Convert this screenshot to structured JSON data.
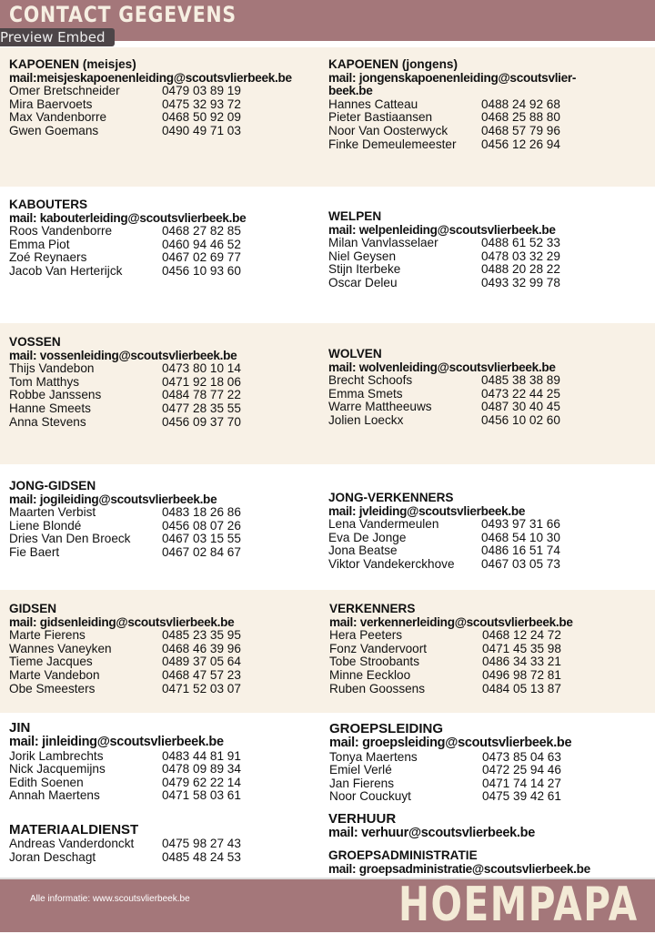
{
  "header": {
    "title": "CONTACT GEGEVENS",
    "embed_label": "Preview Embed"
  },
  "sections": [
    {
      "title": "KAPOENEN (meisjes)",
      "mail": "mail:meisjeskapoenenleiding@scoutsvlierbeek.be",
      "people": [
        [
          "Omer Bretschneider",
          "0479 03 89 19"
        ],
        [
          "Mira Baervoets",
          "0475 32 93 72"
        ],
        [
          "Max Vandenborre",
          "0468 50 92 09"
        ],
        [
          "Gwen Goemans",
          "0490 49 71 03"
        ]
      ]
    },
    {
      "title": "KAPOENEN (jongens)",
      "mail": "mail: jongenskapoenenleiding@scoutsvlier-beek.be",
      "people": [
        [
          "Hannes Catteau",
          "0488 24 92 68"
        ],
        [
          "Pieter Bastiaansen",
          "0468 25 88 80"
        ],
        [
          "Noor Van Oosterwyck",
          "0468 57 79 96"
        ],
        [
          "Finke Demeulemeester",
          "0456 12 26 94"
        ]
      ]
    },
    {
      "title": "KABOUTERS",
      "mail": "mail: kabouterleiding@scoutsvlierbeek.be",
      "people": [
        [
          "Roos Vandenborre",
          "0468 27 82 85"
        ],
        [
          "Emma Piot",
          "0460 94 46 52"
        ],
        [
          "Zoé Reynaers",
          "0467 02 69 77"
        ],
        [
          "Jacob Van Herterijck",
          "0456 10 93 60"
        ]
      ]
    },
    {
      "title": "WELPEN",
      "mail": "mail: welpenleiding@scoutsvlierbeek.be",
      "people": [
        [
          "Milan Vanvlasselaer",
          "0488 61 52 33"
        ],
        [
          "Niel Geysen",
          "0478 03 32 29"
        ],
        [
          "Stijn Iterbeke",
          "0488 20 28 22"
        ],
        [
          "Oscar Deleu",
          "0493 32 99 78"
        ]
      ]
    },
    {
      "title": "VOSSEN",
      "mail": "mail: vossenleiding@scoutsvlierbeek.be",
      "people": [
        [
          "Thijs Vandebon",
          "0473 80 10 14"
        ],
        [
          "Tom Matthys",
          "0471 92 18 06"
        ],
        [
          "Robbe Janssens",
          "0484 78 77 22"
        ],
        [
          "Hanne Smeets",
          "0477 28 35 55"
        ],
        [
          "Anna Stevens",
          "0456 09 37 70"
        ]
      ]
    },
    {
      "title": "WOLVEN",
      "mail": "mail: wolvenleiding@scoutsvlierbeek.be",
      "people": [
        [
          "Brecht Schoofs",
          "0485 38 38 89"
        ],
        [
          "Emma Smets",
          "0473 22 44 25"
        ],
        [
          "Warre Mattheeuws",
          "0487 30 40 45"
        ],
        [
          "Jolien Loeckx",
          "0456 10 02 60"
        ]
      ]
    },
    {
      "title": "JONG-GIDSEN",
      "mail": "mail: jogileiding@scoutsvlierbeek.be",
      "people": [
        [
          "Maarten Verbist",
          "0483 18 26 86"
        ],
        [
          "Liene Blondé",
          "0456 08 07 26"
        ],
        [
          "Dries Van Den Broeck",
          "0467 03 15 55"
        ],
        [
          "Fie Baert",
          "0467 02 84 67"
        ]
      ]
    },
    {
      "title": "JONG-VERKENNERS",
      "mail": "mail: jvleiding@scoutsvlierbeek.be",
      "people": [
        [
          "Lena Vandermeulen",
          "0493 97 31 66"
        ],
        [
          "Eva De Jonge",
          "0468 54 10 30"
        ],
        [
          "Jona Beatse",
          "0486 16 51 74"
        ],
        [
          "Viktor Vandekerckhove",
          "0467 03 05 73"
        ]
      ]
    },
    {
      "title": "GIDSEN",
      "mail": "mail: gidsenleiding@scoutsvlierbeek.be",
      "people": [
        [
          "Marte Fierens",
          "0485 23 35 95"
        ],
        [
          "Wannes Vaneyken",
          "0468 46 39 96"
        ],
        [
          "Tieme Jacques",
          "0489 37 05 64"
        ],
        [
          "Marte Vandebon",
          "0468 47 57 23"
        ],
        [
          "Obe Smeesters",
          "0471 52 03 07"
        ]
      ]
    },
    {
      "title": "VERKENNERS",
      "mail": "mail: verkennerleiding@scoutsvlierbeek.be",
      "people": [
        [
          "Hera Peeters",
          "0468 12 24 72"
        ],
        [
          "Fonz Vandervoort",
          "0471 45 35 98"
        ],
        [
          "Tobe Stroobants",
          "0486 34 33 21"
        ],
        [
          "Minne Eeckloo",
          "0496 98 72 81"
        ],
        [
          "Ruben Goossens",
          "0484 05 13 87"
        ]
      ]
    },
    {
      "title": "JIN",
      "mail": "mail: jinleiding@scoutsvlierbeek.be",
      "big": true,
      "people": [
        [
          "Jorik Lambrechts",
          "0483 44 81 91"
        ],
        [
          "Nick Jacquemijns",
          "0478 09 89 34"
        ],
        [
          "Edith Soenen",
          "0479 62 22 14"
        ],
        [
          "Annah Maertens",
          "0471 58 03 61"
        ]
      ]
    },
    {
      "title": "GROEPSLEIDING",
      "mail": "mail: groepsleiding@scoutsvlierbeek.be",
      "big": true,
      "people": [
        [
          "Tonya Maertens",
          "0473 85 04 63"
        ],
        [
          "Emiel Verlé",
          "0472 25 94 46"
        ],
        [
          "Jan Fierens",
          "0471 74 14 27"
        ],
        [
          "Noor Couckuyt",
          "0475 39 42 61"
        ]
      ]
    },
    {
      "title": "MATERIAALDIENST",
      "mail": "",
      "big": true,
      "people": [
        [
          "Andreas Vanderdonckt",
          "0475 98 27 43"
        ],
        [
          "Joran Deschagt",
          "0485 48 24 53"
        ]
      ]
    },
    {
      "title": "VERHUUR",
      "mail": "mail: verhuur@scoutsvlierbeek.be",
      "big": true,
      "people": []
    },
    {
      "title": "GROEPSADMINISTRATIE",
      "mail": "mail: groepsadministratie@scoutsvlierbeek.be",
      "people": []
    }
  ],
  "footer": {
    "info": "Alle informatie: www.scoutsvlierbeek.be",
    "logo": "HOEMPAPA"
  },
  "colors": {
    "header": "#a4777a",
    "cream": "#f8f1e6"
  }
}
